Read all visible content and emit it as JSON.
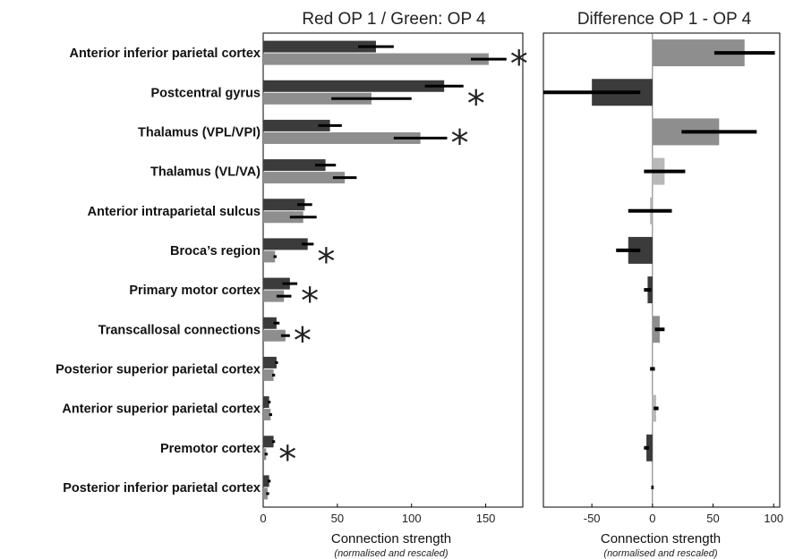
{
  "chart_data": [
    {
      "type": "bar",
      "title": "Red OP 1 / Green: OP 4",
      "xlabel": "Connection strength",
      "xlabel_note": "(normalised and rescaled)",
      "xlim": [
        0,
        175
      ],
      "xticks": [
        "0",
        "50",
        "100",
        "150"
      ],
      "orientation": "horizontal",
      "categories": [
        "Anterior inferior parietal cortex",
        "Postcentral gyrus",
        "Thalamus (VPL/VPI)",
        "Thalamus (VL/VA)",
        "Anterior intraparietal sulcus",
        "Broca’s region",
        "Primary motor cortex",
        "Transcallosal connections",
        "Posterior superior parietal cortex",
        "Anterior superior parietal cortex",
        "Premotor cortex",
        "Posterior inferior parietal cortex"
      ],
      "series": [
        {
          "values": [
            76,
            122,
            45,
            42,
            28,
            30,
            18,
            9,
            9,
            4,
            7,
            4
          ],
          "error": [
            12,
            13,
            8,
            7,
            5,
            4,
            5,
            2,
            1,
            1,
            1,
            1
          ],
          "color": "#3b3b3b"
        },
        {
          "values": [
            152,
            73,
            106,
            55,
            27,
            8,
            14,
            15,
            7,
            5,
            2,
            3
          ],
          "error": [
            12,
            27,
            18,
            8,
            9,
            1,
            5,
            3,
            1,
            1,
            1,
            1
          ],
          "color": "#8e8e8e"
        }
      ],
      "significant": [
        true,
        true,
        true,
        false,
        false,
        true,
        true,
        true,
        false,
        false,
        true,
        false
      ],
      "marker": "*"
    },
    {
      "type": "bar",
      "title": "Difference OP 1 - OP 4",
      "xlabel": "Connection strength",
      "xlabel_note": "(normalised and rescaled)",
      "xlim": [
        -90,
        105
      ],
      "xticks": [
        "-50",
        "0",
        "50",
        "100"
      ],
      "orientation": "horizontal",
      "categories": [
        "Anterior inferior parietal cortex",
        "Postcentral gyrus",
        "Thalamus (VPL/VPI)",
        "Thalamus (VL/VA)",
        "Anterior intraparietal sulcus",
        "Broca’s region",
        "Primary motor cortex",
        "Transcallosal connections",
        "Posterior superior parietal cortex",
        "Anterior superior parietal cortex",
        "Premotor cortex",
        "Posterior inferior parietal cortex"
      ],
      "values": [
        76,
        -50,
        55,
        10,
        -2,
        -20,
        -4,
        6,
        0,
        3,
        -5,
        0
      ],
      "error": [
        25,
        40,
        31,
        17,
        18,
        10,
        3,
        4,
        2,
        2,
        2,
        1
      ],
      "colors": [
        "#8e8e8e",
        "#3b3b3b",
        "#8e8e8e",
        "#b8b8b8",
        "#b8b8b8",
        "#3b3b3b",
        "#3b3b3b",
        "#8e8e8e",
        "#b8b8b8",
        "#b8b8b8",
        "#3b3b3b",
        "#b8b8b8"
      ]
    }
  ]
}
